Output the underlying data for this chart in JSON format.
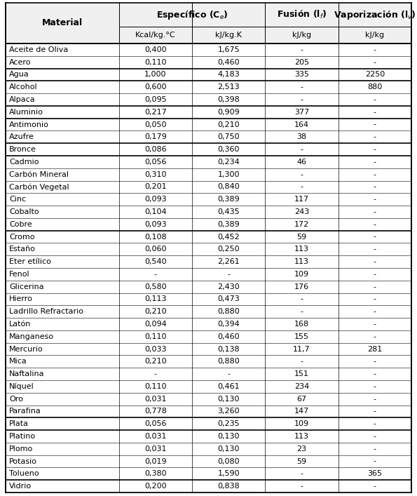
{
  "rows": [
    [
      "Aceite de Oliva",
      "0,400",
      "1,675",
      "-",
      "-"
    ],
    [
      "Acero",
      "0,110",
      "0,460",
      "205",
      "-"
    ],
    [
      "Agua",
      "1,000",
      "4,183",
      "335",
      "2250"
    ],
    [
      "Alcohol",
      "0,600",
      "2,513",
      "-",
      "880"
    ],
    [
      "Alpaca",
      "0,095",
      "0,398",
      "-",
      "-"
    ],
    [
      "Aluminio",
      "0,217",
      "0,909",
      "377",
      "-"
    ],
    [
      "Antimonio",
      "0,050",
      "0,210",
      "164",
      "-"
    ],
    [
      "Azufre",
      "0,179",
      "0,750",
      "38",
      "-"
    ],
    [
      "Bronce",
      "0,086",
      "0,360",
      "-",
      "-"
    ],
    [
      "Cadmio",
      "0,056",
      "0,234",
      "46",
      "-"
    ],
    [
      "Carbón Mineral",
      "0,310",
      "1,300",
      "-",
      "-"
    ],
    [
      "Carbón Vegetal",
      "0,201",
      "0,840",
      "-",
      "-"
    ],
    [
      "Cinc",
      "0,093",
      "0,389",
      "117",
      "-"
    ],
    [
      "Cobalto",
      "0,104",
      "0,435",
      "243",
      "-"
    ],
    [
      "Cobre",
      "0,093",
      "0,389",
      "172",
      "-"
    ],
    [
      "Cromo",
      "0,108",
      "0,452",
      "59",
      "-"
    ],
    [
      "Estaño",
      "0,060",
      "0,250",
      "113",
      "-"
    ],
    [
      "Eter etílico",
      "0,540",
      "2,261",
      "113",
      "-"
    ],
    [
      "Fenol",
      "-",
      "-",
      "109",
      "-"
    ],
    [
      "Glicerina",
      "0,580",
      "2,430",
      "176",
      "-"
    ],
    [
      "Hierro",
      "0,113",
      "0,473",
      "-",
      "-"
    ],
    [
      "Ladrillo Refractario",
      "0,210",
      "0,880",
      "-",
      "-"
    ],
    [
      "Latón",
      "0,094",
      "0,394",
      "168",
      "-"
    ],
    [
      "Manganeso",
      "0,110",
      "0,460",
      "155",
      "-"
    ],
    [
      "Mercurio",
      "0,033",
      "0,138",
      "11,7",
      "281"
    ],
    [
      "Mica",
      "0,210",
      "0,880",
      "-",
      "-"
    ],
    [
      "Naftalina",
      "-",
      "-",
      "151",
      "-"
    ],
    [
      "Níquel",
      "0,110",
      "0,461",
      "234",
      "-"
    ],
    [
      "Oro",
      "0,031",
      "0,130",
      "67",
      "-"
    ],
    [
      "Parafina",
      "0,778",
      "3,260",
      "147",
      "-"
    ],
    [
      "Plata",
      "0,056",
      "0,235",
      "109",
      "-"
    ],
    [
      "Platino",
      "0,031",
      "0,130",
      "113",
      "-"
    ],
    [
      "Plomo",
      "0,031",
      "0,130",
      "23",
      "-"
    ],
    [
      "Potasio",
      "0,019",
      "0,080",
      "59",
      "-"
    ],
    [
      "Tolueno",
      "0,380",
      "1,590",
      "-",
      "365"
    ],
    [
      "Vidrio",
      "0,200",
      "0,838",
      "-",
      "-"
    ]
  ],
  "thick_line_after_rows": [
    1,
    2,
    4,
    5,
    7,
    8,
    14,
    29,
    30,
    34
  ],
  "col_widths_pts": [
    155,
    100,
    100,
    100,
    100
  ],
  "background_color": "#ffffff",
  "header_bg": "#f0f0f0",
  "font_size_header1": 9,
  "font_size_header2": 8,
  "font_size_data": 8,
  "subheaders": [
    "",
    "Kcal/kg.°C",
    "kJ/kg.K",
    "kJ/kg",
    "kJ/kg"
  ]
}
